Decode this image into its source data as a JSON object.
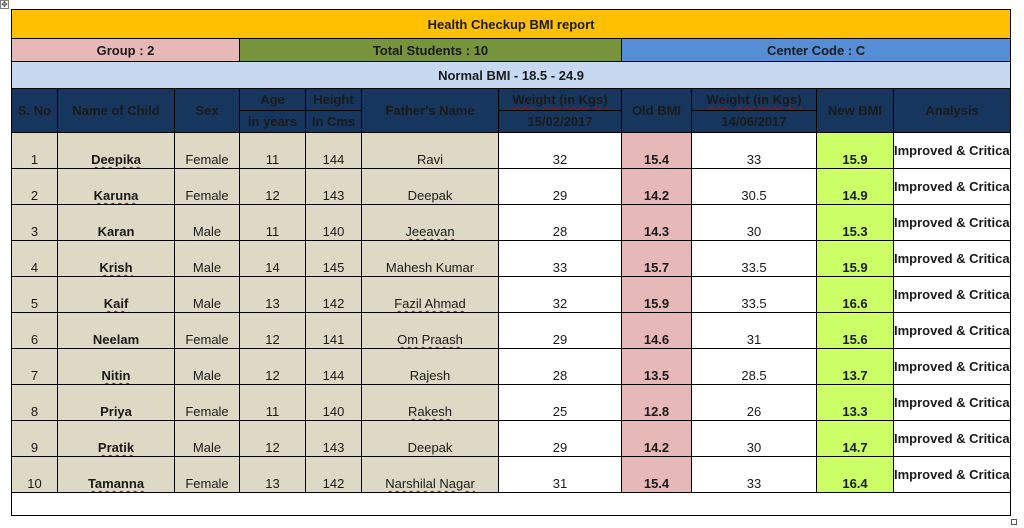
{
  "title": "Health Checkup BMI report",
  "info": {
    "group": "Group : 2",
    "total_students": "Total Students : 10",
    "center_code": "Center Code : C"
  },
  "normal_bmi": "Normal BMI - 18.5 - 24.9",
  "headers": {
    "sno": "S. No",
    "name": "Name of Child",
    "sex": "Sex",
    "age": "Age",
    "age_unit": "in years",
    "height": "Height",
    "height_unit": "In Cms",
    "father": "Father's Name",
    "weight1": "Weight (in Kgs)",
    "date1": "15/02/2017",
    "old_bmi": "Old BMI",
    "weight2": "Weight (in Kgs)",
    "date2": "14/06/2017",
    "new_bmi": "New BMI",
    "analysis": "Analysis"
  },
  "rows": [
    {
      "sno": "1",
      "name": "Deepika",
      "sex": "Female",
      "age": "11",
      "height": "144",
      "father": "Ravi",
      "weight1": "32",
      "old_bmi": "15.4",
      "weight2": "33",
      "new_bmi": "15.9",
      "analysis": "Improved & Critical"
    },
    {
      "sno": "2",
      "name": "Karuna",
      "sex": "Female",
      "age": "12",
      "height": "143",
      "father": "Deepak",
      "weight1": "29",
      "old_bmi": "14.2",
      "weight2": "30.5",
      "new_bmi": "14.9",
      "analysis": "Improved & Critical"
    },
    {
      "sno": "3",
      "name": "Karan",
      "sex": "Male",
      "age": "11",
      "height": "140",
      "father": "Jeeavan",
      "weight1": "28",
      "old_bmi": "14.3",
      "weight2": "30",
      "new_bmi": "15.3",
      "analysis": "Improved & Critical"
    },
    {
      "sno": "4",
      "name": "Krish",
      "sex": "Male",
      "age": "14",
      "height": "145",
      "father": "Mahesh Kumar",
      "weight1": "33",
      "old_bmi": "15.7",
      "weight2": "33.5",
      "new_bmi": "15.9",
      "analysis": "Improved & Critical"
    },
    {
      "sno": "5",
      "name": "Kaif",
      "sex": "Male",
      "age": "13",
      "height": "142",
      "father": "Fazil Ahmad",
      "weight1": "32",
      "old_bmi": "15.9",
      "weight2": "33.5",
      "new_bmi": "16.6",
      "analysis": "Improved & Critical"
    },
    {
      "sno": "6",
      "name": "Neelam",
      "sex": "Female",
      "age": "12",
      "height": "141",
      "father": "Om Praash",
      "weight1": "29",
      "old_bmi": "14.6",
      "weight2": "31",
      "new_bmi": "15.6",
      "analysis": "Improved & Critical"
    },
    {
      "sno": "7",
      "name": "Nitin",
      "sex": "Male",
      "age": "12",
      "height": "144",
      "father": "Rajesh",
      "weight1": "28",
      "old_bmi": "13.5",
      "weight2": "28.5",
      "new_bmi": "13.7",
      "analysis": "Improved & Critical"
    },
    {
      "sno": "8",
      "name": "Priya",
      "sex": "Female",
      "age": "11",
      "height": "140",
      "father": "Rakesh",
      "weight1": "25",
      "old_bmi": "12.8",
      "weight2": "26",
      "new_bmi": "13.3",
      "analysis": "Improved & Critical"
    },
    {
      "sno": "9",
      "name": "Pratik",
      "sex": "Male",
      "age": "12",
      "height": "143",
      "father": "Deepak",
      "weight1": "29",
      "old_bmi": "14.2",
      "weight2": "30",
      "new_bmi": "14.7",
      "analysis": "Improved & Critical"
    },
    {
      "sno": "10",
      "name": "Tamanna",
      "sex": "Female",
      "age": "13",
      "height": "142",
      "father": "Narshilal Nagar",
      "weight1": "31",
      "old_bmi": "15.4",
      "weight2": "33",
      "new_bmi": "16.4",
      "analysis": "Improved & Critical"
    }
  ],
  "colors": {
    "title_bg": "#ffc000",
    "group_bg": "#e6b8b7",
    "total_bg": "#77933c",
    "center_bg": "#558ed5",
    "bmi_bg": "#c6d9f1",
    "header_bg": "#17365d",
    "name_cols_bg": "#ddd9c4",
    "old_bmi_bg": "#e6b8b7",
    "new_bmi_bg": "#ccff66",
    "analysis_text": "#c00000"
  }
}
